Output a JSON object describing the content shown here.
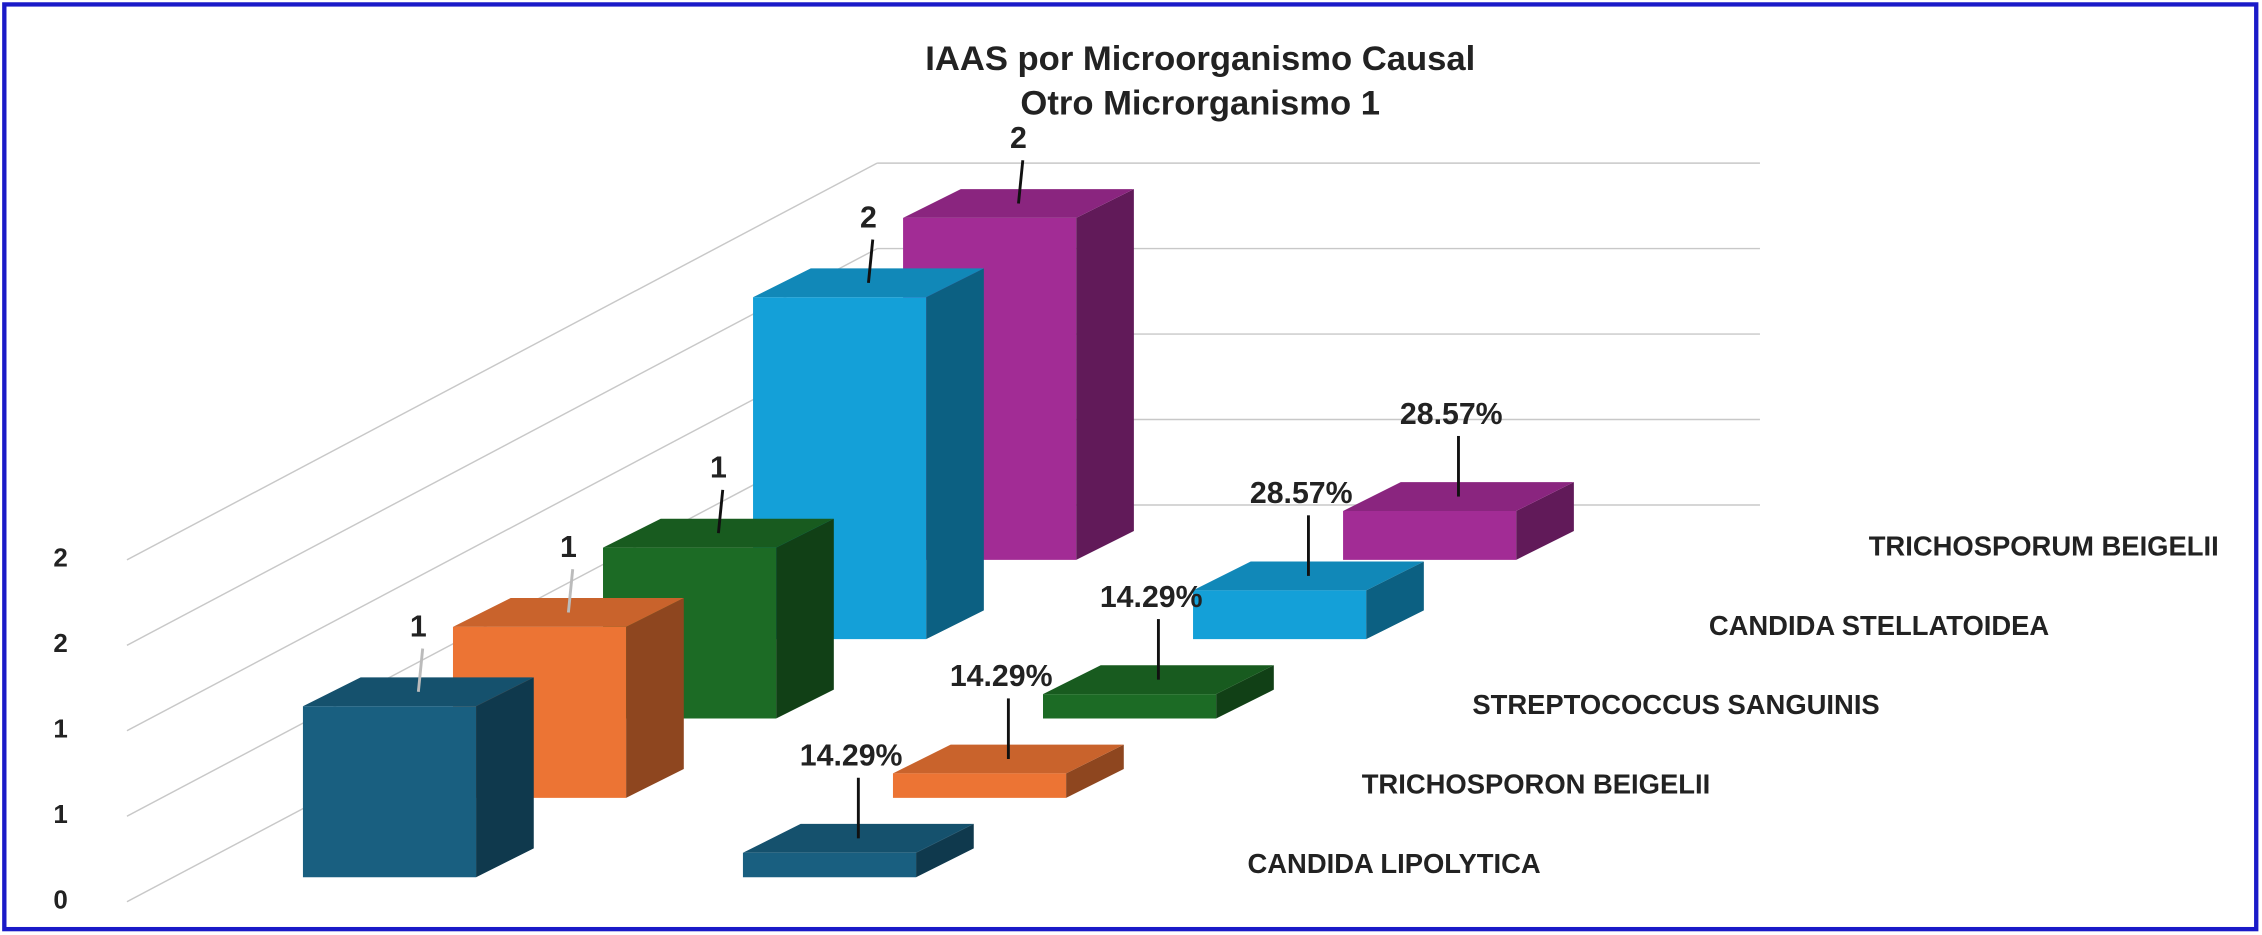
{
  "chart_data": {
    "type": "bar3d",
    "title": "IAAS por Microorganismo Causal",
    "subtitle": "Otro Microrganismo 1",
    "categories": [
      "CANDIDA LIPOLYTICA",
      "TRICHOSPORON BEIGELII",
      "STREPTOCOCCUS SANGUINIS",
      "CANDIDA STELLATOIDEA",
      "TRICHOSPORUM BEIGELII"
    ],
    "colors": [
      "#195f80",
      "#ec7434",
      "#1c6b25",
      "#14a0d8",
      "#a22c95"
    ],
    "series": [
      {
        "values": [
          1,
          1,
          1,
          2,
          2
        ]
      },
      {
        "values": [
          0.1429,
          0.1429,
          0.1429,
          0.2857,
          0.2857
        ],
        "value_labels": [
          "14.29%",
          "14.29%",
          "14.29%",
          "28.57%",
          "28.57%"
        ]
      }
    ],
    "ylim": [
      0,
      2
    ],
    "yticks": [
      0,
      {
        "value": 0.5,
        "label": "1"
      },
      1,
      {
        "value": 1.5,
        "label": "2"
      },
      2
    ],
    "grid": true
  }
}
